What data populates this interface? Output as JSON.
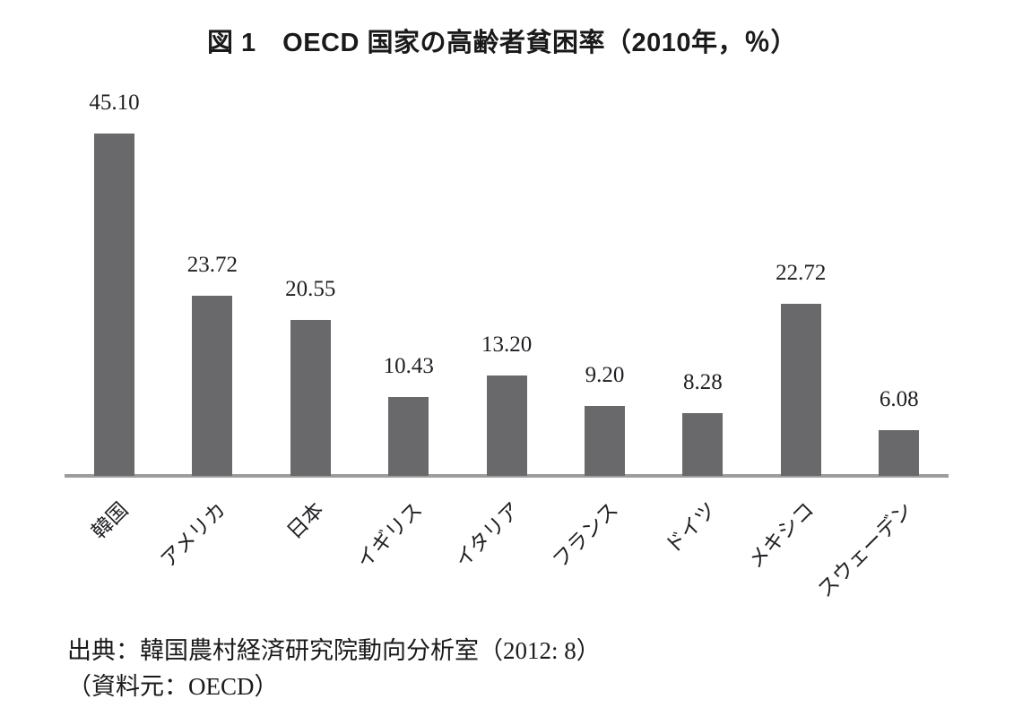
{
  "chart_data": {
    "type": "bar",
    "title": "図 1　OECD 国家の高齢者貧困率（2010年，％）",
    "categories": [
      "韓国",
      "アメリカ",
      "日本",
      "イギリス",
      "イタリア",
      "フランス",
      "ドイツ",
      "メキシコ",
      "スウェーデン"
    ],
    "values": [
      45.1,
      23.72,
      20.55,
      10.43,
      13.2,
      9.2,
      8.28,
      22.72,
      6.08
    ],
    "value_labels": [
      "45.10",
      "23.72",
      "20.55",
      "10.43",
      "13.20",
      "9.20",
      "8.28",
      "22.72",
      "6.08"
    ],
    "ylim": [
      0,
      47
    ],
    "xlabel": "",
    "ylabel": "",
    "grid": false,
    "legend": "none",
    "value_label_position": "above-bars",
    "category_label_rotation_deg": -45,
    "bar_color": "#69696c",
    "axis_line_color": "#9d9d9d",
    "text_color": "#1a1a1a"
  },
  "source": {
    "line1": "出典：韓国農村経済研究院動向分析室（2012: 8）",
    "line2": "（資料元：OECD）"
  }
}
